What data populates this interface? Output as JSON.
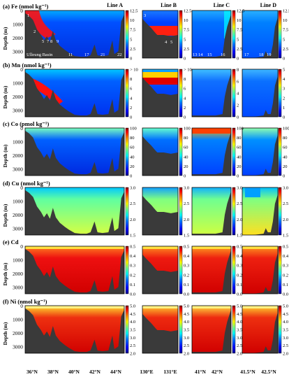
{
  "figure": {
    "line_titles": [
      "Line A",
      "Line B",
      "Line C",
      "Line D"
    ],
    "ylabel": "Depth (m)",
    "xaxis": {
      "A": [
        "36°N",
        "38°N",
        "40°N",
        "42°N",
        "44°N"
      ],
      "B": [
        "130°E",
        "131°E"
      ],
      "C": [
        "41°N",
        "42°N"
      ],
      "D": [
        "41.5°N",
        "42.5°N"
      ]
    },
    "station_labels": {
      "A_upper": [
        "1",
        "2"
      ],
      "A_lower": [
        "5",
        "7",
        "8",
        "9"
      ],
      "A_basin": "Ulleung Basin",
      "A_bottom": [
        "11",
        "17",
        "21",
        "22"
      ],
      "B_top": "3",
      "B_bottom": [
        "4",
        "5"
      ],
      "C_bottom": [
        "13",
        "14",
        "15",
        "16"
      ],
      "D_bottom": [
        "17",
        "18",
        "19"
      ]
    }
  },
  "colors": {
    "land": "#3a3a3a",
    "cmap": [
      "#00008f",
      "#0000ff",
      "#0080ff",
      "#00ffff",
      "#80ff80",
      "#ffff00",
      "#ff8000",
      "#ff0000",
      "#800000"
    ]
  },
  "chart_data": [
    {
      "type": "heatmap",
      "panel": "(a)",
      "title": "Fe (nmol kg⁻¹)",
      "ylim": [
        3500,
        0
      ],
      "yticks": [
        0,
        1000,
        2000,
        3000
      ],
      "colorbar": {
        "A": {
          "ticks": [
            "0",
            "2.5",
            "5",
            "7.5",
            "10",
            "12.5"
          ],
          "range": [
            0,
            12.5
          ]
        },
        "B": {
          "ticks": [
            "0",
            "2.5",
            "5",
            "7.5",
            "10",
            "12.5"
          ],
          "range": [
            0,
            12.5
          ]
        },
        "C": {
          "ticks": [
            "0",
            "2.5",
            "5",
            "7.5",
            "10",
            "12.5"
          ],
          "range": [
            0,
            12.5
          ]
        },
        "D": {
          "ticks": [
            "0",
            "2.5",
            "5",
            "7.5",
            "10",
            "12.5"
          ],
          "range": [
            0,
            12.5
          ]
        }
      }
    },
    {
      "type": "heatmap",
      "panel": "(b)",
      "title": "Mn (nmol kg⁻¹)",
      "ylim": [
        3500,
        0
      ],
      "yticks": [
        0,
        1000,
        2000,
        3000
      ],
      "colorbar": {
        "A": {
          "ticks": [
            "0",
            "2",
            "4",
            "6",
            "8",
            "> 10"
          ],
          "range": [
            0,
            10
          ]
        },
        "B": {
          "ticks": [
            "0",
            "2",
            "4",
            "6",
            "8",
            "> 10"
          ],
          "range": [
            0,
            10
          ]
        },
        "C": {
          "ticks": [
            "0",
            "2",
            "4",
            "6",
            "8"
          ],
          "range": [
            0,
            8
          ]
        },
        "D": {
          "ticks": [
            "0",
            "1",
            "2",
            "3",
            "4",
            "5"
          ],
          "range": [
            0,
            5
          ]
        }
      }
    },
    {
      "type": "heatmap",
      "panel": "(c)",
      "title": "Co (pmol kg⁻¹)",
      "ylim": [
        3500,
        0
      ],
      "yticks": [
        0,
        1000,
        2000,
        3000
      ],
      "colorbar": {
        "A": {
          "ticks": [
            "0",
            "20",
            "40",
            "60",
            "80",
            "100"
          ],
          "range": [
            0,
            100
          ]
        },
        "B": {
          "ticks": [
            "0",
            "20",
            "40",
            "60",
            "80",
            "100"
          ],
          "range": [
            0,
            100
          ]
        },
        "C": {
          "ticks": [
            "0",
            "20",
            "40",
            "60",
            "80",
            "100"
          ],
          "range": [
            0,
            100
          ]
        },
        "D": {
          "ticks": [
            "0",
            "20",
            "40",
            "60",
            "80",
            "100"
          ],
          "range": [
            0,
            100
          ]
        }
      }
    },
    {
      "type": "heatmap",
      "panel": "(d)",
      "title": "Cu (nmol kg⁻¹)",
      "ylim": [
        3500,
        0
      ],
      "yticks": [
        0,
        1000,
        2000,
        3000
      ],
      "colorbar": {
        "A": {
          "ticks": [
            "1.5",
            "2.0",
            "2.5",
            "3.0"
          ],
          "range": [
            1.5,
            3.0
          ]
        },
        "B": {
          "ticks": [
            "1.5",
            "2.0",
            "2.5",
            "3.0"
          ],
          "range": [
            1.5,
            3.0
          ]
        },
        "C": {
          "ticks": [
            "1.5",
            "2.0",
            "2.5",
            "3.0"
          ],
          "range": [
            1.5,
            3.0
          ]
        },
        "D": {
          "ticks": [
            "1.5",
            "2.0",
            "2.5",
            "3.0"
          ],
          "range": [
            1.5,
            3.0
          ]
        }
      }
    },
    {
      "type": "heatmap",
      "panel": "(e)",
      "title": "Cd",
      "ylim": [
        3500,
        0
      ],
      "yticks": [
        0,
        1000,
        2000,
        3000
      ],
      "colorbar": {
        "A": {
          "ticks": [
            "0.0",
            "0.1",
            "0.2",
            "0.3",
            "0.4",
            "0.5"
          ],
          "range": [
            0,
            0.5
          ]
        },
        "B": {
          "ticks": [
            "0.0",
            "0.1",
            "0.2",
            "0.3",
            "0.4",
            "0.5"
          ],
          "range": [
            0,
            0.5
          ]
        },
        "C": {
          "ticks": [
            "0.0",
            "0.1",
            "0.2",
            "0.3",
            "0.4",
            "0.5"
          ],
          "range": [
            0,
            0.5
          ]
        },
        "D": {
          "ticks": [
            "0.0",
            "0.1",
            "0.2",
            "0.3",
            "0.4",
            "0.5"
          ],
          "range": [
            0,
            0.5
          ]
        }
      }
    },
    {
      "type": "heatmap",
      "panel": "(f)",
      "title": "Ni (nmol kg⁻¹)",
      "ylim": [
        3500,
        0
      ],
      "yticks": [
        0,
        1000,
        2000,
        3000
      ],
      "colorbar": {
        "A": {
          "ticks": [
            "2.0",
            "2.5",
            "3.0",
            "3.5",
            "4.0",
            "4.5",
            "5.0"
          ],
          "range": [
            2,
            5
          ]
        },
        "B": {
          "ticks": [
            "2.0",
            "2.5",
            "3.0",
            "3.5",
            "4.0",
            "4.5",
            "5.0"
          ],
          "range": [
            2,
            5
          ]
        },
        "C": {
          "ticks": [
            "2.0",
            "2.5",
            "3.0",
            "3.5",
            "4.0",
            "4.5",
            "5.0"
          ],
          "range": [
            2,
            5
          ]
        },
        "D": {
          "ticks": [
            "2.0",
            "2.5",
            "3.0",
            "3.5",
            "4.0",
            "4.5",
            "5.0"
          ],
          "range": [
            2,
            5
          ]
        }
      }
    }
  ]
}
